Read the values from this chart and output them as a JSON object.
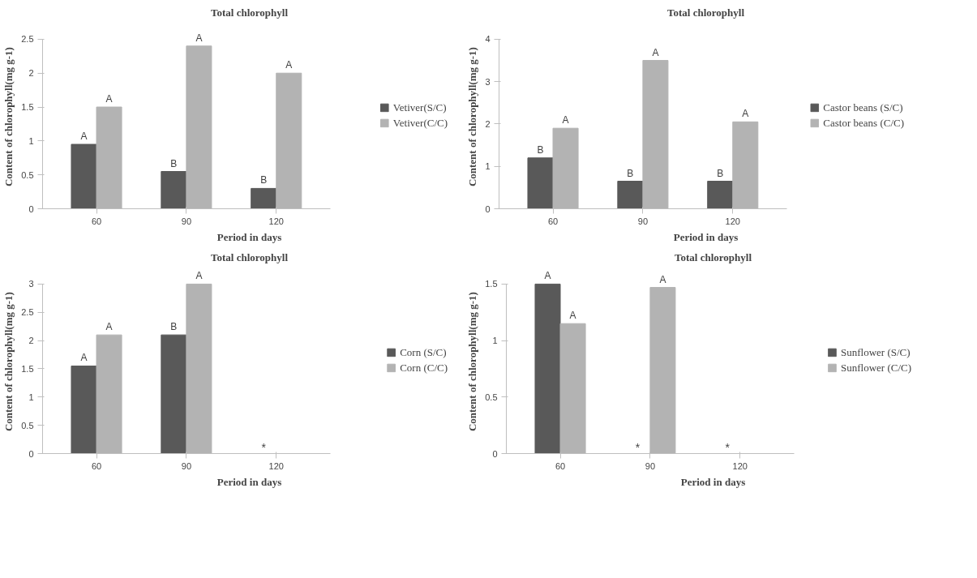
{
  "chart_data": [
    {
      "type": "bar",
      "title": "Total chlorophyll",
      "xlabel": "Period in days",
      "ylabel": "Content of chlorophyll(mg  g-1)",
      "categories": [
        "60",
        "90",
        "120"
      ],
      "ylim": [
        0,
        2.5
      ],
      "yticks": [
        0,
        0.5,
        1,
        1.5,
        2,
        2.5
      ],
      "legend": "right",
      "grid": false,
      "series": [
        {
          "name": "Vetiver(S/C)",
          "color": "#595959",
          "values": [
            0.95,
            0.55,
            0.3
          ],
          "value_labels": [
            "A",
            "B",
            "B"
          ]
        },
        {
          "name": "Vetiver(C/C)",
          "color": "#b3b3b3",
          "values": [
            1.5,
            2.4,
            2.0
          ],
          "value_labels": [
            "A",
            "A",
            "A"
          ]
        }
      ]
    },
    {
      "type": "bar",
      "title": "Total chlorophyll",
      "xlabel": "Period in days",
      "ylabel": "Content of chlorophyll(mg  g-1)",
      "categories": [
        "60",
        "90",
        "120"
      ],
      "ylim": [
        0,
        4
      ],
      "yticks": [
        0,
        1,
        2,
        3,
        4
      ],
      "legend": "right",
      "grid": false,
      "series": [
        {
          "name": "Castor beans (S/C)",
          "color": "#595959",
          "values": [
            1.2,
            0.65,
            0.65
          ],
          "value_labels": [
            "B",
            "B",
            "B"
          ]
        },
        {
          "name": "Castor beans (C/C)",
          "color": "#b3b3b3",
          "values": [
            1.9,
            3.5,
            2.05
          ],
          "value_labels": [
            "A",
            "A",
            "A"
          ]
        }
      ]
    },
    {
      "type": "bar",
      "title": "Total chlorophyll",
      "xlabel": "Period in days",
      "ylabel": "Content of chlorophyll(mg  g-1)",
      "categories": [
        "60",
        "90",
        "120"
      ],
      "ylim": [
        0,
        3
      ],
      "yticks": [
        0,
        0.5,
        1,
        1.5,
        2,
        2.5,
        3
      ],
      "legend": "right",
      "grid": false,
      "annotations": [
        "*"
      ],
      "series": [
        {
          "name": "Corn (S/C)",
          "color": "#595959",
          "values": [
            1.55,
            2.1,
            null
          ],
          "value_labels": [
            "A",
            "B",
            null
          ]
        },
        {
          "name": "Corn (C/C)",
          "color": "#b3b3b3",
          "values": [
            2.1,
            3.0,
            null
          ],
          "value_labels": [
            "A",
            "A",
            null
          ]
        }
      ]
    },
    {
      "type": "bar",
      "title": "Total chlorophyll",
      "xlabel": "Period in days",
      "ylabel": "Content of chlorophyll(mg  g-1)",
      "categories": [
        "60",
        "90",
        "120"
      ],
      "ylim": [
        0,
        1.5
      ],
      "yticks": [
        0,
        0.5,
        1,
        1.5
      ],
      "legend": "right",
      "grid": false,
      "annotations": [
        "*",
        "*"
      ],
      "series": [
        {
          "name": "Sunflower (S/C)",
          "color": "#595959",
          "values": [
            1.5,
            null,
            null
          ],
          "value_labels": [
            "A",
            null,
            null
          ]
        },
        {
          "name": "Sunflower (C/C)",
          "color": "#b3b3b3",
          "values": [
            1.15,
            1.47,
            null
          ],
          "value_labels": [
            "A",
            "A",
            null
          ]
        }
      ]
    }
  ]
}
